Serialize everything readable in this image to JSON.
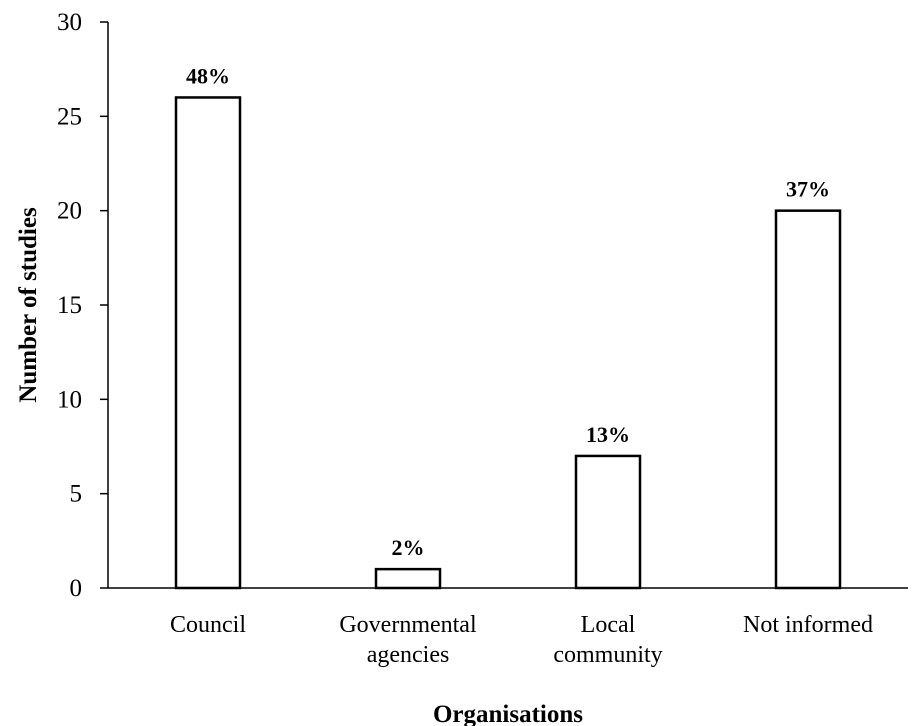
{
  "chart_data": {
    "type": "bar",
    "categories": [
      [
        "Council"
      ],
      [
        "Governmental",
        "agencies"
      ],
      [
        "Local",
        "community"
      ],
      [
        "Not informed"
      ]
    ],
    "values": [
      26,
      1,
      7,
      20
    ],
    "data_labels": [
      "48%",
      "2%",
      "13%",
      "37%"
    ],
    "title": "",
    "xlabel": "Organisations",
    "ylabel": "Number of studies",
    "ylim": [
      0,
      30
    ],
    "yticks": [
      0,
      5,
      10,
      15,
      20,
      25,
      30
    ],
    "grid": false,
    "legend": "none",
    "bar_fill": "#ffffff",
    "bar_stroke": "#000000"
  }
}
